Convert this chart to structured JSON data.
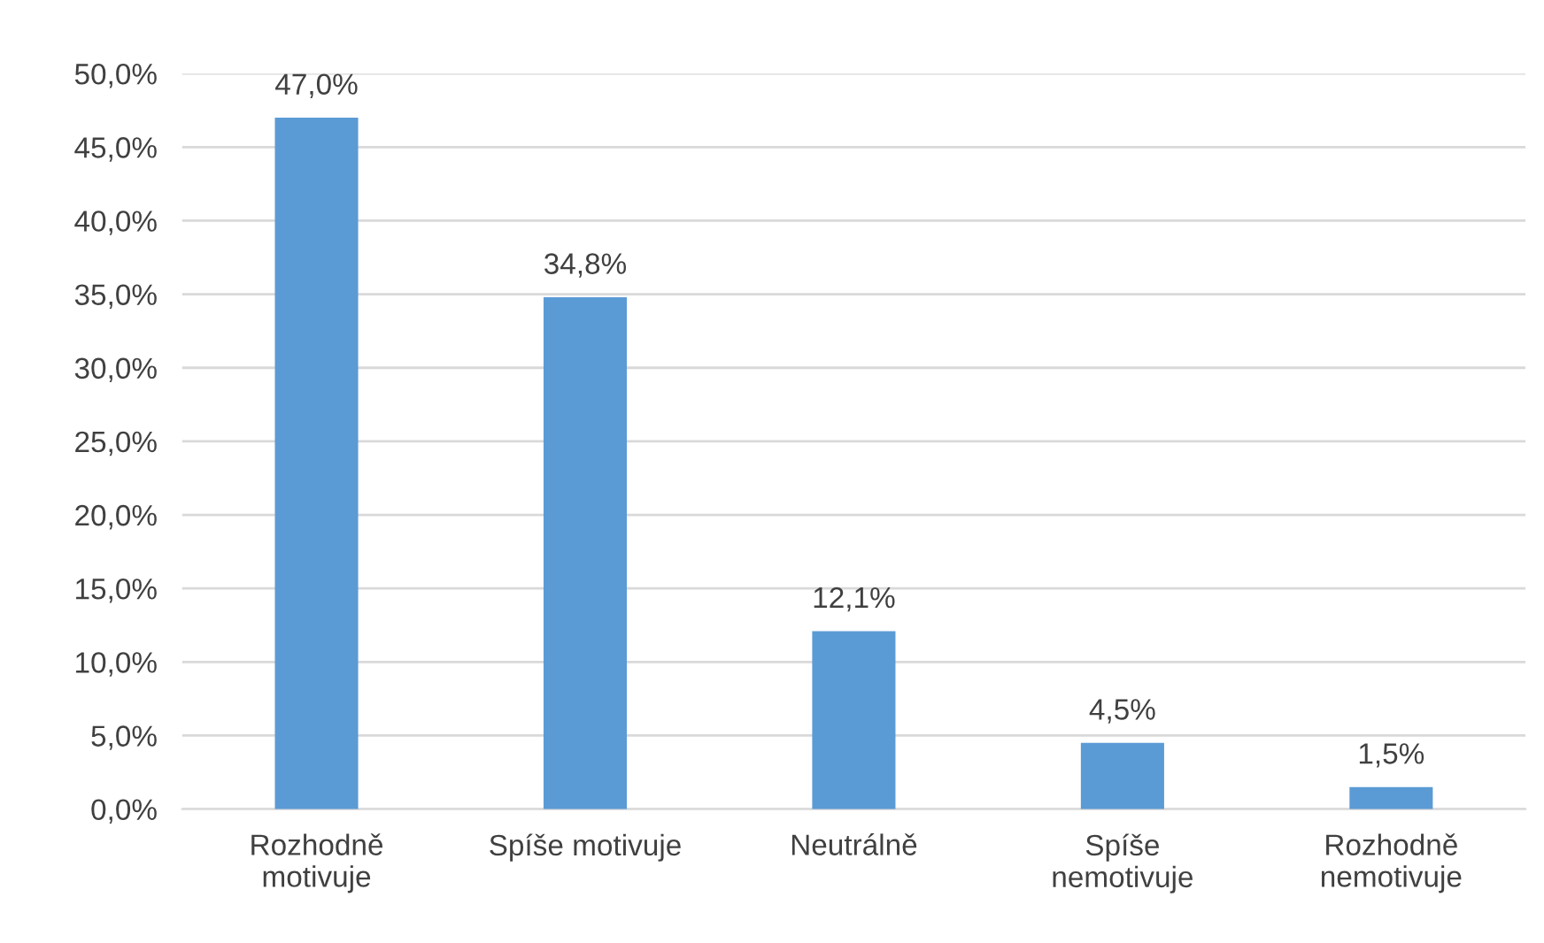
{
  "chart_data": {
    "type": "bar",
    "categories": [
      "Rozhodně\nmotivuje",
      "Spíše motivuje",
      "Neutrálně",
      "Spíše\nnemotivuje",
      "Rozhodně\nnemotivuje"
    ],
    "values": [
      47.0,
      34.8,
      12.1,
      4.5,
      1.5
    ],
    "value_labels": [
      "47,0%",
      "34,8%",
      "12,1%",
      "4,5%",
      "1,5%"
    ],
    "color": "#5b9bd5",
    "ylim": [
      0,
      50
    ],
    "yticks": [
      {
        "value": 0,
        "label": "0,0%"
      },
      {
        "value": 5,
        "label": "5,0%"
      },
      {
        "value": 10,
        "label": "10,0%"
      },
      {
        "value": 15,
        "label": "15,0%"
      },
      {
        "value": 20,
        "label": "20,0%"
      },
      {
        "value": 25,
        "label": "25,0%"
      },
      {
        "value": 30,
        "label": "30,0%"
      },
      {
        "value": 35,
        "label": "35,0%"
      },
      {
        "value": 40,
        "label": "40,0%"
      },
      {
        "value": 45,
        "label": "45,0%"
      },
      {
        "value": 50,
        "label": "50,0%"
      }
    ],
    "grid": "y"
  }
}
